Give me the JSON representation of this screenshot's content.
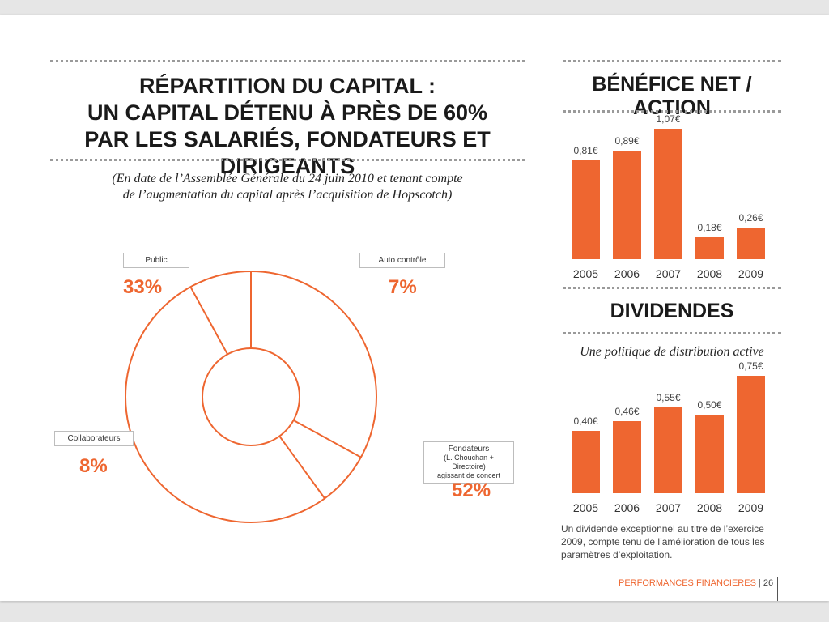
{
  "capital": {
    "title_lines": [
      "RÉPARTITION DU CAPITAL :",
      "UN CAPITAL DÉTENU À PRÈS DE 60%",
      "PAR LES SALARIÉS, FONDATEURS ET DIRIGEANTS"
    ],
    "subtitle_lines": [
      "(En date de l’Assemblée Générale du 24 juin 2010 et tenant compte",
      "de l’augmentation du capital après l’acquisition de Hopscotch)"
    ],
    "labels": {
      "public": "Public",
      "auto": "Auto contrôle",
      "collab": "Collaborateurs",
      "fondateurs": [
        "Fondateurs",
        "(L. Chouchan + Directoire)",
        "agissant de concert"
      ]
    },
    "percents": {
      "public": "33%",
      "auto": "7%",
      "collab": "8%",
      "fondateurs": "52%"
    }
  },
  "benefice": {
    "title": "BÉNÉFICE NET / ACTION"
  },
  "dividendes": {
    "title": "DIVIDENDES",
    "subtitle": "Une politique de distribution active",
    "note_lines": [
      "Un dividende exceptionnel au titre de l’exercice",
      "2009, compte tenu de l’amélioration de tous les",
      "paramètres d’exploitation."
    ]
  },
  "footer": {
    "section": "PERFORMANCES FINANCIERES",
    "separator": "|",
    "page": "26"
  },
  "colors": {
    "accent": "#ee6630"
  },
  "chart_data": [
    {
      "type": "pie",
      "categories": [
        "Public",
        "Auto contrôle",
        "Fondateurs (L. Chouchan + Directoire) agissant de concert",
        "Collaborateurs"
      ],
      "values": [
        33,
        7,
        52,
        8
      ]
    },
    {
      "type": "bar",
      "title": "BÉNÉFICE NET / ACTION",
      "categories": [
        "2005",
        "2006",
        "2007",
        "2008",
        "2009"
      ],
      "values": [
        0.81,
        0.89,
        1.07,
        0.18,
        0.26
      ],
      "data_labels": [
        "0,81€",
        "0,89€",
        "1,07€",
        "0,18€",
        "0,26€"
      ]
    },
    {
      "type": "bar",
      "title": "DIVIDENDES",
      "categories": [
        "2005",
        "2006",
        "2007",
        "2008",
        "2009"
      ],
      "values": [
        0.4,
        0.46,
        0.55,
        0.5,
        0.75
      ],
      "data_labels": [
        "0,40€",
        "0,46€",
        "0,55€",
        "0,50€",
        "0,75€"
      ]
    }
  ]
}
